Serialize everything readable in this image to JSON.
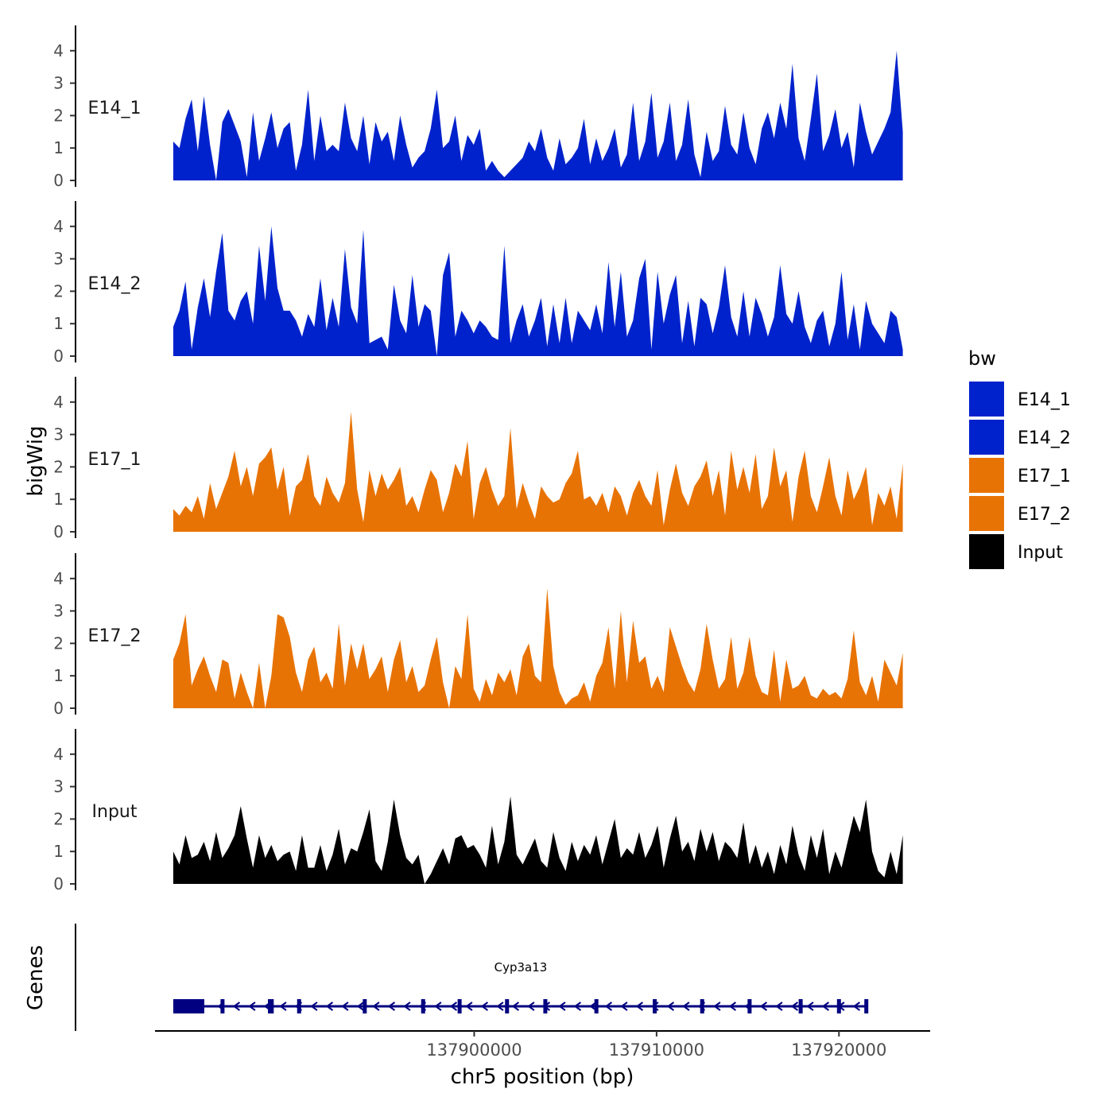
{
  "chart_data": {
    "type": "area",
    "ylabel": "bigWig",
    "xlabel": "chr5 position (bp)",
    "xlim": [
      137882500,
      137925000
    ],
    "x_ticks": [
      137900000,
      137910000,
      137920000
    ],
    "x_tick_labels": [
      "137900000",
      "137910000",
      "137920000"
    ],
    "ylim": [
      0,
      4.8
    ],
    "y_ticks": [
      0,
      1,
      2,
      3,
      4
    ],
    "y_tick_labels": [
      "0",
      "1",
      "2",
      "3",
      "4"
    ],
    "track_x_range": [
      137883500,
      137923500
    ],
    "legend": {
      "title": "bw",
      "position": "right",
      "entries": [
        {
          "label": "E14_1",
          "color": "#0022cc"
        },
        {
          "label": "E14_2",
          "color": "#0022cc"
        },
        {
          "label": "E17_1",
          "color": "#e87305"
        },
        {
          "label": "E17_2",
          "color": "#e87305"
        },
        {
          "label": "Input",
          "color": "#000000"
        }
      ]
    },
    "series": [
      {
        "name": "E14_1",
        "color": "#0022cc",
        "values": [
          1.2,
          1.0,
          1.9,
          2.5,
          0.9,
          2.6,
          1.1,
          0.0,
          1.8,
          2.2,
          1.7,
          1.2,
          0.1,
          2.1,
          0.6,
          1.3,
          2.1,
          1.0,
          1.6,
          1.8,
          0.3,
          1.1,
          2.8,
          0.6,
          2.0,
          0.9,
          1.1,
          0.9,
          2.4,
          1.3,
          0.9,
          2.0,
          0.5,
          1.8,
          1.2,
          1.5,
          0.6,
          2.0,
          1.1,
          0.4,
          0.7,
          0.9,
          1.6,
          2.8,
          1.0,
          1.2,
          2.0,
          0.6,
          1.4,
          1.1,
          1.6,
          0.3,
          0.6,
          0.3,
          0.1,
          0.3,
          0.5,
          0.7,
          1.2,
          0.9,
          1.6,
          0.7,
          0.3,
          1.3,
          0.5,
          0.7,
          1.0,
          1.9,
          0.5,
          1.3,
          0.6,
          1.0,
          1.6,
          0.4,
          0.8,
          2.4,
          0.6,
          1.2,
          2.7,
          0.7,
          1.2,
          2.4,
          0.6,
          1.1,
          2.5,
          0.8,
          0.1,
          1.5,
          0.6,
          0.9,
          2.3,
          1.1,
          0.8,
          2.1,
          1.0,
          0.5,
          1.6,
          2.1,
          1.3,
          2.4,
          1.6,
          3.6,
          1.3,
          0.6,
          1.9,
          3.3,
          0.9,
          1.4,
          2.2,
          1.0,
          1.5,
          0.4,
          2.4,
          1.5,
          0.8,
          1.2,
          1.6,
          2.1,
          4.0,
          1.5
        ]
      },
      {
        "name": "E14_2",
        "color": "#0022cc",
        "values": [
          0.9,
          1.4,
          2.3,
          0.2,
          1.5,
          2.4,
          1.2,
          2.6,
          3.8,
          1.4,
          1.1,
          1.7,
          2.0,
          1.0,
          3.4,
          1.7,
          4.0,
          2.1,
          1.4,
          1.4,
          1.1,
          0.6,
          1.3,
          0.9,
          2.4,
          0.8,
          1.8,
          0.9,
          3.3,
          1.5,
          1.0,
          3.9,
          0.4,
          0.5,
          0.6,
          0.2,
          2.2,
          1.1,
          0.7,
          2.5,
          0.9,
          1.6,
          1.4,
          0.0,
          2.5,
          3.2,
          0.6,
          1.4,
          1.1,
          0.7,
          1.1,
          0.9,
          0.6,
          0.5,
          3.4,
          0.4,
          1.1,
          1.6,
          0.6,
          1.1,
          1.8,
          0.3,
          1.6,
          0.4,
          1.8,
          0.4,
          1.4,
          1.1,
          0.8,
          1.6,
          0.7,
          2.9,
          0.9,
          2.6,
          0.6,
          1.1,
          2.4,
          3.0,
          0.2,
          2.6,
          1.0,
          1.9,
          2.5,
          0.4,
          1.7,
          0.3,
          1.8,
          1.6,
          0.7,
          1.5,
          2.8,
          1.2,
          0.6,
          2.0,
          0.6,
          1.8,
          1.3,
          0.6,
          1.2,
          2.8,
          1.3,
          1.0,
          2.0,
          0.9,
          0.4,
          1.1,
          1.4,
          0.3,
          1.0,
          2.6,
          0.5,
          1.6,
          0.2,
          1.7,
          1.0,
          0.7,
          0.4,
          1.4,
          1.2,
          0.2
        ]
      },
      {
        "name": "E17_1",
        "color": "#e87305",
        "values": [
          0.7,
          0.5,
          0.8,
          0.6,
          1.1,
          0.4,
          1.5,
          0.7,
          1.2,
          1.7,
          2.5,
          1.4,
          2.0,
          1.1,
          2.1,
          2.3,
          2.6,
          1.3,
          2.0,
          0.5,
          1.4,
          1.6,
          2.4,
          1.1,
          0.8,
          1.7,
          1.2,
          0.9,
          1.5,
          3.7,
          1.3,
          0.3,
          1.9,
          1.1,
          1.8,
          1.3,
          1.6,
          2.0,
          0.8,
          1.1,
          0.6,
          1.3,
          1.9,
          1.6,
          0.6,
          1.2,
          2.1,
          1.7,
          2.8,
          0.4,
          1.5,
          2.0,
          1.3,
          0.8,
          1.1,
          3.2,
          0.7,
          1.5,
          0.9,
          0.4,
          1.4,
          1.1,
          0.9,
          1.0,
          1.5,
          1.8,
          2.5,
          1.0,
          1.1,
          0.8,
          1.2,
          0.6,
          1.4,
          1.1,
          0.5,
          1.2,
          1.6,
          1.1,
          0.8,
          1.9,
          0.2,
          1.3,
          2.1,
          1.2,
          0.8,
          1.4,
          1.7,
          2.2,
          1.1,
          1.9,
          0.5,
          2.5,
          1.3,
          2.0,
          1.2,
          2.4,
          0.7,
          1.1,
          2.6,
          1.4,
          1.9,
          0.3,
          1.7,
          2.5,
          1.1,
          0.6,
          1.4,
          2.3,
          1.1,
          0.5,
          1.9,
          1.0,
          1.4,
          2.0,
          0.2,
          1.2,
          0.8,
          1.4,
          0.4,
          2.1
        ]
      },
      {
        "name": "E17_2",
        "color": "#e87305",
        "values": [
          1.5,
          2.0,
          2.9,
          0.7,
          1.2,
          1.6,
          1.0,
          0.5,
          1.5,
          1.4,
          0.3,
          1.1,
          0.5,
          0.0,
          1.4,
          0.0,
          1.0,
          2.9,
          2.8,
          2.2,
          1.1,
          0.5,
          1.5,
          1.9,
          0.8,
          1.1,
          0.6,
          2.6,
          0.7,
          2.0,
          1.2,
          2.0,
          0.9,
          1.2,
          1.6,
          0.5,
          1.5,
          2.1,
          0.8,
          1.3,
          0.5,
          0.7,
          1.5,
          2.2,
          0.8,
          0.0,
          1.3,
          0.9,
          2.9,
          0.6,
          0.2,
          0.9,
          0.4,
          1.1,
          0.8,
          1.2,
          0.4,
          1.6,
          2.0,
          1.0,
          0.8,
          3.7,
          1.3,
          0.5,
          0.1,
          0.3,
          0.4,
          0.8,
          0.2,
          1.0,
          1.4,
          2.5,
          0.6,
          3.0,
          0.8,
          2.7,
          1.4,
          1.6,
          0.6,
          1.0,
          0.5,
          2.5,
          1.9,
          1.3,
          0.8,
          0.5,
          1.2,
          2.6,
          1.5,
          0.6,
          0.9,
          2.2,
          0.6,
          1.1,
          2.2,
          1.0,
          0.5,
          0.4,
          1.8,
          0.2,
          1.5,
          0.6,
          0.7,
          1.0,
          0.4,
          0.3,
          0.6,
          0.4,
          0.5,
          0.3,
          0.9,
          2.4,
          0.8,
          0.4,
          1.0,
          0.2,
          1.5,
          1.1,
          0.7,
          1.7
        ]
      },
      {
        "name": "Input",
        "color": "#000000",
        "values": [
          1.0,
          0.6,
          1.5,
          0.8,
          0.9,
          1.3,
          0.7,
          1.6,
          0.8,
          1.1,
          1.5,
          2.4,
          1.4,
          0.5,
          1.5,
          0.8,
          1.2,
          0.7,
          0.9,
          1.0,
          0.4,
          1.5,
          0.5,
          0.5,
          1.2,
          0.4,
          0.9,
          1.7,
          0.6,
          1.1,
          1.0,
          1.6,
          2.3,
          0.7,
          0.4,
          1.3,
          2.6,
          1.5,
          0.8,
          0.6,
          0.9,
          0.0,
          0.3,
          0.7,
          1.1,
          0.6,
          1.4,
          1.5,
          1.1,
          1.2,
          0.9,
          0.5,
          1.8,
          0.6,
          1.3,
          2.7,
          0.9,
          0.6,
          1.0,
          1.4,
          0.7,
          0.5,
          1.6,
          0.8,
          0.4,
          1.3,
          0.7,
          1.2,
          0.9,
          1.5,
          0.6,
          1.3,
          2.0,
          0.8,
          1.1,
          0.9,
          1.6,
          0.8,
          1.2,
          1.8,
          0.5,
          1.4,
          2.1,
          1.0,
          1.3,
          0.7,
          1.7,
          1.0,
          1.6,
          0.7,
          1.3,
          1.1,
          0.8,
          1.9,
          0.6,
          1.2,
          0.5,
          1.0,
          0.3,
          1.2,
          0.6,
          1.8,
          0.9,
          0.4,
          1.5,
          0.8,
          1.7,
          0.3,
          1.0,
          0.5,
          1.3,
          2.1,
          1.6,
          2.6,
          1.0,
          0.4,
          0.2,
          1.0,
          0.3,
          1.5
        ]
      }
    ],
    "genes": {
      "label": "Genes",
      "gene_name": "Cyp3a13",
      "start": 137883500,
      "end": 137921600,
      "strand": "-",
      "utr": [
        137883500,
        137885200
      ],
      "exons": [
        137886200,
        137888800,
        137888900,
        137890400,
        137894000,
        137897200,
        137899200,
        137901800,
        137903900,
        137906700,
        137909900,
        137912500,
        137915100,
        137917900,
        137920000,
        137921500
      ],
      "color": "#000080"
    }
  }
}
